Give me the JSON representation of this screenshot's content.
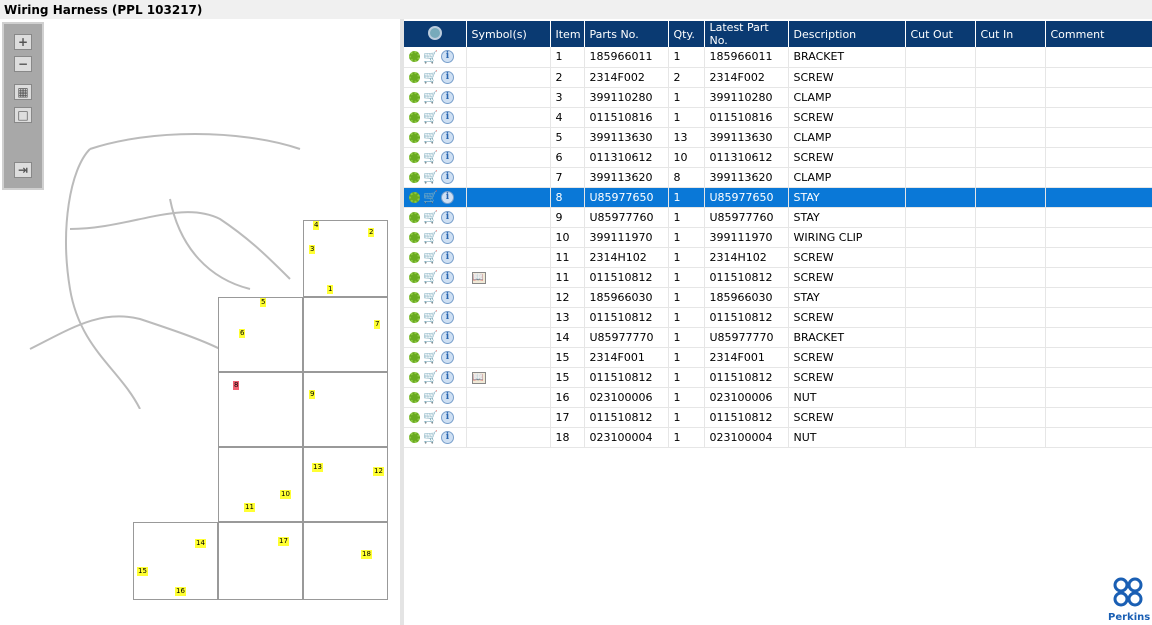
{
  "title": "Wiring Harness (PPL 103217)",
  "toolbar": {
    "zoom_in": "+",
    "zoom_out": "−",
    "fit": "▦",
    "actual": "□",
    "export": "⇥"
  },
  "diagram_labels": [
    "1",
    "2",
    "3",
    "4",
    "5",
    "6",
    "7",
    "8",
    "9",
    "10",
    "11",
    "12",
    "13",
    "14",
    "15",
    "16",
    "17",
    "18"
  ],
  "columns": [
    "Symbol(s)",
    "Item",
    "Parts No.",
    "Qty.",
    "Latest Part No.",
    "Description",
    "Cut Out",
    "Cut In",
    "Comment"
  ],
  "rows": [
    {
      "symbol": "",
      "item": "1",
      "part": "185966011",
      "qty": "1",
      "latest": "185966011",
      "desc": "BRACKET"
    },
    {
      "symbol": "",
      "item": "2",
      "part": "2314F002",
      "qty": "2",
      "latest": "2314F002",
      "desc": "SCREW"
    },
    {
      "symbol": "",
      "item": "3",
      "part": "399110280",
      "qty": "1",
      "latest": "399110280",
      "desc": "CLAMP"
    },
    {
      "symbol": "",
      "item": "4",
      "part": "011510816",
      "qty": "1",
      "latest": "011510816",
      "desc": "SCREW"
    },
    {
      "symbol": "",
      "item": "5",
      "part": "399113630",
      "qty": "13",
      "latest": "399113630",
      "desc": "CLAMP"
    },
    {
      "symbol": "",
      "item": "6",
      "part": "011310612",
      "qty": "10",
      "latest": "011310612",
      "desc": "SCREW"
    },
    {
      "symbol": "",
      "item": "7",
      "part": "399113620",
      "qty": "8",
      "latest": "399113620",
      "desc": "CLAMP"
    },
    {
      "symbol": "",
      "item": "8",
      "part": "U85977650",
      "qty": "1",
      "latest": "U85977650",
      "desc": "STAY",
      "selected": true
    },
    {
      "symbol": "",
      "item": "9",
      "part": "U85977760",
      "qty": "1",
      "latest": "U85977760",
      "desc": "STAY"
    },
    {
      "symbol": "",
      "item": "10",
      "part": "399111970",
      "qty": "1",
      "latest": "399111970",
      "desc": "WIRING CLIP"
    },
    {
      "symbol": "",
      "item": "11",
      "part": "2314H102",
      "qty": "1",
      "latest": "2314H102",
      "desc": "SCREW"
    },
    {
      "symbol": "book",
      "item": "11",
      "part": "011510812",
      "qty": "1",
      "latest": "011510812",
      "desc": "SCREW"
    },
    {
      "symbol": "",
      "item": "12",
      "part": "185966030",
      "qty": "1",
      "latest": "185966030",
      "desc": "STAY"
    },
    {
      "symbol": "",
      "item": "13",
      "part": "011510812",
      "qty": "1",
      "latest": "011510812",
      "desc": "SCREW"
    },
    {
      "symbol": "",
      "item": "14",
      "part": "U85977770",
      "qty": "1",
      "latest": "U85977770",
      "desc": "BRACKET"
    },
    {
      "symbol": "",
      "item": "15",
      "part": "2314F001",
      "qty": "1",
      "latest": "2314F001",
      "desc": "SCREW"
    },
    {
      "symbol": "book",
      "item": "15",
      "part": "011510812",
      "qty": "1",
      "latest": "011510812",
      "desc": "SCREW"
    },
    {
      "symbol": "",
      "item": "16",
      "part": "023100006",
      "qty": "1",
      "latest": "023100006",
      "desc": "NUT"
    },
    {
      "symbol": "",
      "item": "17",
      "part": "011510812",
      "qty": "1",
      "latest": "011510812",
      "desc": "SCREW"
    },
    {
      "symbol": "",
      "item": "18",
      "part": "023100004",
      "qty": "1",
      "latest": "023100004",
      "desc": "NUT"
    }
  ],
  "logo": "Perkins",
  "colors": {
    "header": "#0a3a72",
    "selected": "#0a78d7",
    "label": "#ffff33"
  }
}
